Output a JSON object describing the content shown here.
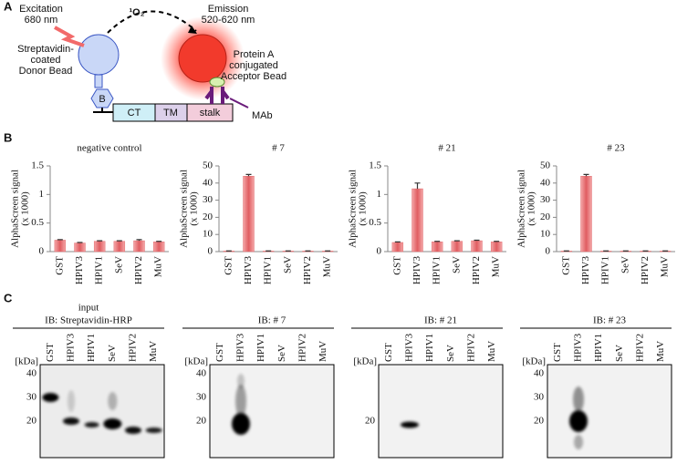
{
  "panels": {
    "a": "A",
    "b": "B",
    "c": "C"
  },
  "diagram": {
    "excitation": [
      "Excitation",
      "680 nm"
    ],
    "singlet_oxygen": "¹O₂",
    "emission": [
      "Emission",
      "520-620 nm"
    ],
    "donor": [
      "Streptavidin-",
      "coated",
      "Donor Bead"
    ],
    "acceptor": [
      "Protein A",
      "conjugated",
      "Acceptor Bead"
    ],
    "biotin": "B",
    "domains": [
      "CT",
      "TM",
      "stalk"
    ],
    "antibody": "MAb"
  },
  "chart_data": [
    {
      "type": "bar",
      "title": "negative control",
      "y_label": [
        "AlphaScreen signal",
        "(x 1000)"
      ],
      "categories": [
        "GST",
        "HPIV3",
        "HPIV1",
        "SeV",
        "HPIV2",
        "MuV"
      ],
      "values": [
        0.2,
        0.15,
        0.18,
        0.18,
        0.19,
        0.17
      ],
      "errors": [
        0.01,
        0.01,
        0.01,
        0.01,
        0.02,
        0.01
      ],
      "color": "#e36b6e",
      "ylim": [
        0,
        1.5
      ],
      "yticks": [
        0,
        0.5,
        1,
        1.5
      ]
    },
    {
      "type": "bar",
      "title": "# 7",
      "y_label": [
        "AlphaScreen signal",
        "(x 1000)"
      ],
      "categories": [
        "GST",
        "HPIV3",
        "HPIV1",
        "SeV",
        "HPIV2",
        "MuV"
      ],
      "values": [
        0.3,
        44,
        0.3,
        0.3,
        0.3,
        0.3
      ],
      "errors": [
        0.1,
        1,
        0.1,
        0.1,
        0.1,
        0.1
      ],
      "color": "#e36b6e",
      "ylim": [
        0,
        50
      ],
      "yticks": [
        0,
        10,
        20,
        30,
        40,
        50
      ]
    },
    {
      "type": "bar",
      "title": "# 21",
      "y_label": [
        "AlphaScreen signal",
        "(x 1000)"
      ],
      "categories": [
        "GST",
        "HPIV3",
        "HPIV1",
        "SeV",
        "HPIV2",
        "MuV"
      ],
      "values": [
        0.16,
        1.1,
        0.17,
        0.18,
        0.19,
        0.17
      ],
      "errors": [
        0.01,
        0.1,
        0.01,
        0.01,
        0.01,
        0.01
      ],
      "color": "#e36b6e",
      "ylim": [
        0,
        1.5
      ],
      "yticks": [
        0,
        0.5,
        1,
        1.5
      ]
    },
    {
      "type": "bar",
      "title": "# 23",
      "y_label": [
        "AlphaScreen signal",
        "(x 1000)"
      ],
      "categories": [
        "GST",
        "HPIV3",
        "HPIV1",
        "SeV",
        "HPIV2",
        "MuV"
      ],
      "values": [
        0.3,
        44,
        0.3,
        0.3,
        0.3,
        0.3
      ],
      "errors": [
        0.1,
        1,
        0.1,
        0.1,
        0.1,
        0.1
      ],
      "color": "#e36b6e",
      "ylim": [
        0,
        50
      ],
      "yticks": [
        0,
        10,
        20,
        30,
        40,
        50
      ]
    }
  ],
  "blots": [
    {
      "title": [
        "input",
        "IB: Streptavidin-HRP"
      ],
      "unit": "[kDa]",
      "markers": [
        40,
        30,
        20
      ],
      "lanes": [
        "GST",
        "HPIV3",
        "HPIV1",
        "SeV",
        "HPIV2",
        "MuV"
      ]
    },
    {
      "title": [
        "IB: # 7"
      ],
      "unit": "[kDa]",
      "markers": [
        40,
        30,
        20
      ],
      "lanes": [
        "GST",
        "HPIV3",
        "HPIV1",
        "SeV",
        "HPIV2",
        "MuV"
      ]
    },
    {
      "title": [
        "IB: # 21"
      ],
      "unit": "[kDa]",
      "markers": [
        20
      ],
      "lanes": [
        "GST",
        "HPIV3",
        "HPIV1",
        "SeV",
        "HPIV2",
        "MuV"
      ]
    },
    {
      "title": [
        "IB: # 23"
      ],
      "unit": "[kDa]",
      "markers": [
        40,
        30,
        20
      ],
      "lanes": [
        "GST",
        "HPIV3",
        "HPIV1",
        "SeV",
        "HPIV2",
        "MuV"
      ]
    }
  ]
}
